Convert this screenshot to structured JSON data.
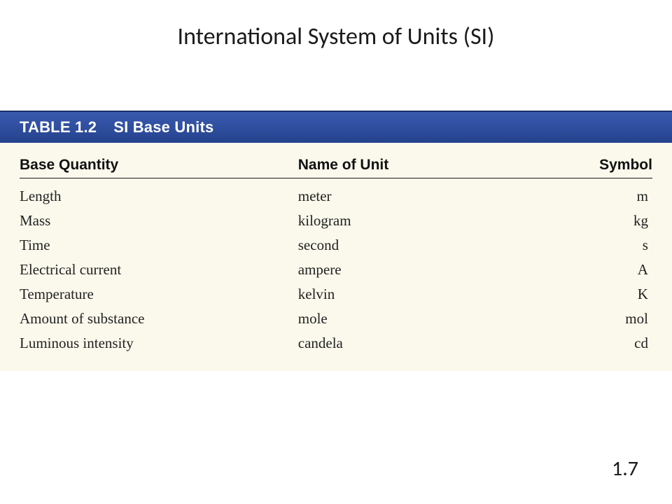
{
  "slide": {
    "title": "International System of Units (SI)",
    "page_number": "1.7"
  },
  "table": {
    "type": "table",
    "label": "TABLE 1.2",
    "caption": "SI Base Units",
    "header_bar": {
      "background_color": "#2a4a9a",
      "text_color": "#ffffff",
      "font_weight": 700,
      "font_size_pt": 16
    },
    "body_style": {
      "background_color": "#faf9ec",
      "text_color": "#222222",
      "header_border_color": "#1a1a1a",
      "row_font_family": "Times New Roman",
      "row_font_size_pt": 16,
      "column_widths_pct": [
        44,
        40,
        16
      ],
      "column_align": [
        "left",
        "left",
        "right"
      ]
    },
    "columns": [
      "Base Quantity",
      "Name of Unit",
      "Symbol"
    ],
    "rows": [
      {
        "quantity": "Length",
        "unit": "meter",
        "symbol": "m"
      },
      {
        "quantity": "Mass",
        "unit": "kilogram",
        "symbol": "kg"
      },
      {
        "quantity": "Time",
        "unit": "second",
        "symbol": "s"
      },
      {
        "quantity": "Electrical current",
        "unit": "ampere",
        "symbol": "A"
      },
      {
        "quantity": "Temperature",
        "unit": "kelvin",
        "symbol": "K"
      },
      {
        "quantity": "Amount of substance",
        "unit": "mole",
        "symbol": "mol"
      },
      {
        "quantity": "Luminous intensity",
        "unit": "candela",
        "symbol": "cd"
      }
    ]
  }
}
